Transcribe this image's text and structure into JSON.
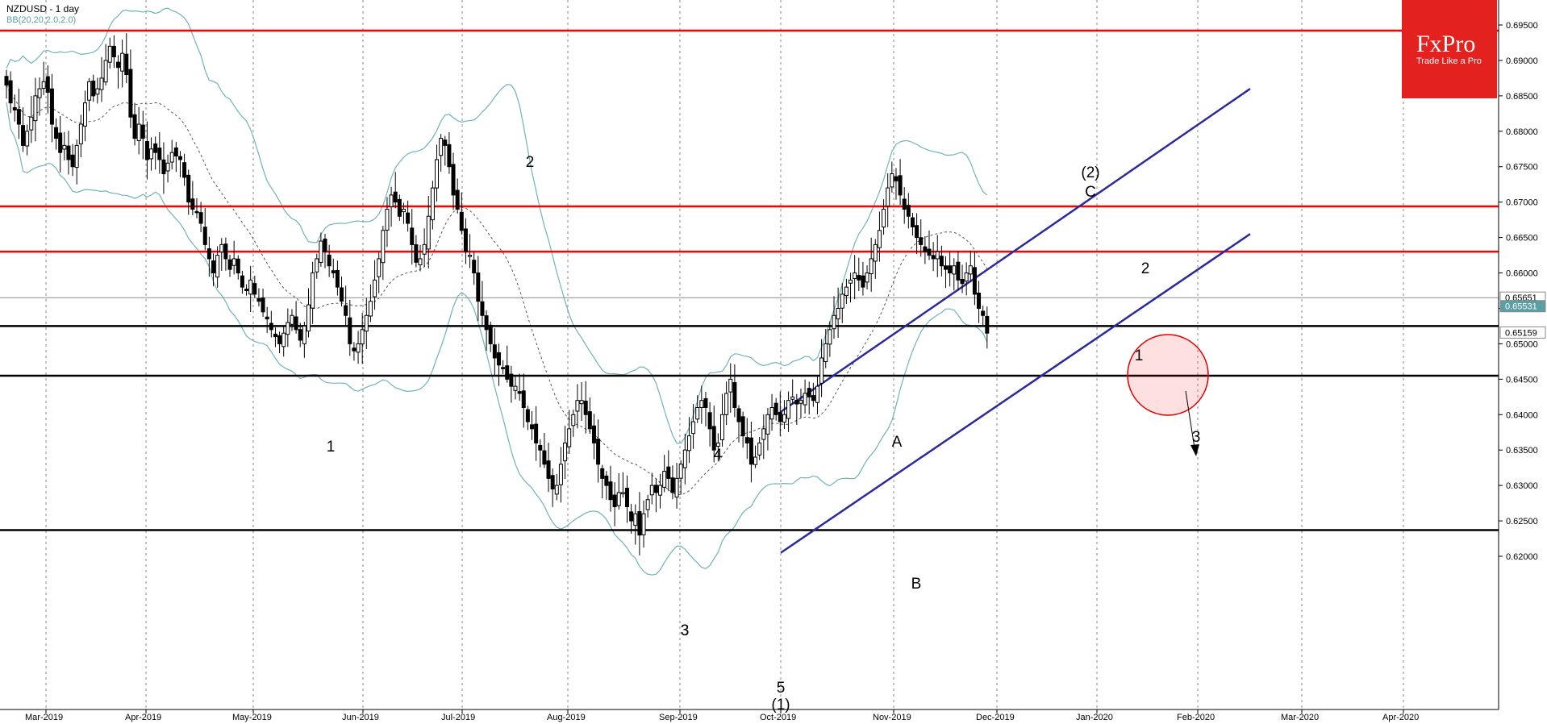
{
  "header": {
    "symbol": "NZDUSD - 1 day",
    "indicator": "BB(20,20,2.0,2.0)"
  },
  "logo": {
    "brand": "FxPro",
    "tagline": "Trade Like a Pro"
  },
  "chart_data": {
    "type": "candlestick",
    "y_range": [
      0.617,
      0.698
    ],
    "y_ticks": [
      "0.69500",
      "0.69000",
      "0.68500",
      "0.68000",
      "0.67500",
      "0.67000",
      "0.66500",
      "0.66000",
      "0.65500",
      "0.65000",
      "0.64500",
      "0.64000",
      "0.63500",
      "0.63000",
      "0.62500",
      "0.62000"
    ],
    "x_labels": [
      "Mar-2019",
      "Apr-2019",
      "May-2019",
      "Jun-2019",
      "Jul-2019",
      "Aug-2019",
      "Sep-2019",
      "Oct-2019",
      "Nov-2019",
      "Dec-2019",
      "Jan-2020",
      "Feb-2020",
      "Mar-2020",
      "Apr-2020"
    ],
    "price_tags": [
      {
        "label": "0.65651",
        "value": 0.65651,
        "style": "outline"
      },
      {
        "label": "0.65531",
        "value": 0.65531,
        "style": "filled"
      },
      {
        "label": "0.65159",
        "value": 0.65159,
        "style": "outline"
      }
    ],
    "horizontal_levels": [
      {
        "value": 0.6942,
        "color": "#ff0000"
      },
      {
        "value": 0.6694,
        "color": "#ff0000"
      },
      {
        "value": 0.663,
        "color": "#ff0000"
      },
      {
        "value": 0.6525,
        "color": "#000000"
      },
      {
        "value": 0.6455,
        "color": "#000000"
      },
      {
        "value": 0.6237,
        "color": "#000000"
      }
    ],
    "wave_labels": [
      {
        "text": "1",
        "date_index": 53
      },
      {
        "text": "2",
        "date_index": 104
      },
      {
        "text": "3",
        "date_index": 133
      },
      {
        "text": "4",
        "date_index": 140
      },
      {
        "text": "3",
        "date_index": 132
      },
      {
        "text": "5",
        "date_index": 154
      },
      {
        "text": "(1)",
        "date_index": 154
      },
      {
        "text": "A",
        "date_index": 177
      },
      {
        "text": "B",
        "date_index": 181
      },
      {
        "text": "(2)",
        "date_index": 216
      },
      {
        "text": "C",
        "date_index": 216
      },
      {
        "text": "1",
        "date_index": 228
      },
      {
        "text": "2",
        "date_index": 229
      },
      {
        "text": "3",
        "date_index": 238
      }
    ],
    "series": [
      {
        "name": "NZDUSD",
        "close": [
          0.6865,
          0.684,
          0.683,
          0.681,
          0.678,
          0.68,
          0.682,
          0.685,
          0.686,
          0.687,
          0.6855,
          0.681,
          0.679,
          0.677,
          0.678,
          0.676,
          0.675,
          0.678,
          0.681,
          0.684,
          0.687,
          0.685,
          0.686,
          0.6875,
          0.69,
          0.692,
          0.6905,
          0.689,
          0.691,
          0.688,
          0.682,
          0.679,
          0.681,
          0.679,
          0.676,
          0.6775,
          0.677,
          0.676,
          0.674,
          0.6755,
          0.677,
          0.6765,
          0.676,
          0.6735,
          0.67,
          0.669,
          0.6685,
          0.667,
          0.664,
          0.662,
          0.66,
          0.6625,
          0.664,
          0.662,
          0.6605,
          0.662,
          0.66,
          0.658,
          0.6575,
          0.659,
          0.657,
          0.656,
          0.6545,
          0.6535,
          0.652,
          0.651,
          0.65,
          0.6515,
          0.653,
          0.654,
          0.652,
          0.6505,
          0.6525,
          0.6555,
          0.66,
          0.662,
          0.6645,
          0.663,
          0.661,
          0.66,
          0.658,
          0.656,
          0.654,
          0.65,
          0.649,
          0.65,
          0.652,
          0.654,
          0.656,
          0.659,
          0.662,
          0.666,
          0.669,
          0.671,
          0.67,
          0.668,
          0.669,
          0.667,
          0.664,
          0.6615,
          0.662,
          0.664,
          0.668,
          0.672,
          0.676,
          0.679,
          0.678,
          0.675,
          0.671,
          0.669,
          0.666,
          0.663,
          0.6625,
          0.66,
          0.656,
          0.654,
          0.652,
          0.65,
          0.648,
          0.647,
          0.6465,
          0.645,
          0.644,
          0.644,
          0.643,
          0.641,
          0.639,
          0.638,
          0.636,
          0.635,
          0.633,
          0.631,
          0.6295,
          0.63,
          0.633,
          0.636,
          0.638,
          0.64,
          0.642,
          0.642,
          0.64,
          0.638,
          0.636,
          0.633,
          0.631,
          0.63,
          0.628,
          0.627,
          0.629,
          0.629,
          0.627,
          0.625,
          0.626,
          0.623,
          0.626,
          0.628,
          0.63,
          0.629,
          0.63,
          0.632,
          0.631,
          0.629,
          0.631,
          0.633,
          0.635,
          0.637,
          0.639,
          0.641,
          0.642,
          0.641,
          0.638,
          0.635,
          0.636,
          0.64,
          0.643,
          0.645,
          0.641,
          0.639,
          0.637,
          0.636,
          0.633,
          0.634,
          0.636,
          0.638,
          0.64,
          0.641,
          0.64,
          0.639,
          0.64,
          0.642,
          0.6425,
          0.6415,
          0.642,
          0.643,
          0.6425,
          0.642,
          0.644,
          0.648,
          0.65,
          0.652,
          0.654,
          0.655,
          0.657,
          0.658,
          0.659,
          0.66,
          0.659,
          0.658,
          0.66,
          0.662,
          0.664,
          0.666,
          0.669,
          0.672,
          0.674,
          0.673,
          0.671,
          0.669,
          0.668,
          0.6665,
          0.665,
          0.664,
          0.663,
          0.6625,
          0.662,
          0.663,
          0.661,
          0.6605,
          0.66,
          0.661,
          0.659,
          0.6585,
          0.66,
          0.661,
          0.657,
          0.655,
          0.654,
          0.6515
        ]
      }
    ]
  }
}
